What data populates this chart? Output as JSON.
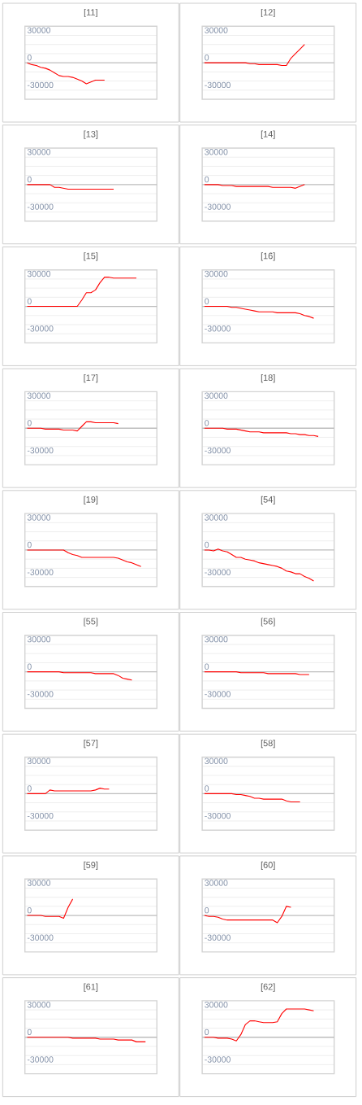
{
  "chart_data": [
    {
      "type": "line",
      "title": "[11]",
      "categories": [
        null,
        null,
        null,
        null,
        null,
        null,
        null,
        null,
        null,
        null,
        null,
        null,
        null,
        null,
        null,
        null,
        null,
        null,
        null,
        null,
        null,
        null,
        null,
        null,
        null,
        null,
        null,
        null,
        null
      ],
      "values": [
        0,
        -2000,
        -3000,
        -5000,
        -6000,
        -8000,
        -11000,
        -14000,
        -15000,
        -15000,
        -16000,
        -18000,
        -20000,
        -23000,
        -21000,
        -19000,
        -19000,
        -19000,
        null,
        null,
        null,
        null,
        null,
        null,
        null,
        null,
        null,
        null,
        null
      ],
      "color": "#ff0000",
      "ylim": [
        -40000,
        40000
      ],
      "yticks": [
        -30000,
        {
          "value": -20000,
          "label": null
        },
        {
          "value": -10000,
          "label": null
        },
        0,
        {
          "value": 10000,
          "label": null
        },
        {
          "value": 20000,
          "label": null
        },
        30000
      ],
      "grid": "y"
    },
    {
      "type": "line",
      "title": "[12]",
      "categories": [
        null,
        null,
        null,
        null,
        null,
        null,
        null,
        null,
        null,
        null,
        null,
        null,
        null,
        null,
        null,
        null,
        null,
        null,
        null,
        null,
        null,
        null,
        null,
        null,
        null,
        null,
        null,
        null,
        null
      ],
      "values": [
        0,
        0,
        0,
        0,
        0,
        0,
        0,
        0,
        0,
        0,
        -1000,
        -1000,
        -2000,
        -2000,
        -2000,
        -2000,
        -2000,
        -3000,
        -3000,
        5000,
        10000,
        15000,
        20000,
        null,
        null,
        null,
        null,
        null,
        null
      ],
      "color": "#ff0000",
      "ylim": [
        -40000,
        40000
      ],
      "yticks": [
        -30000,
        {
          "value": -20000,
          "label": null
        },
        {
          "value": -10000,
          "label": null
        },
        0,
        {
          "value": 10000,
          "label": null
        },
        {
          "value": 20000,
          "label": null
        },
        30000
      ],
      "grid": "y"
    },
    {
      "type": "line",
      "title": "[13]",
      "categories": [
        null,
        null,
        null,
        null,
        null,
        null,
        null,
        null,
        null,
        null,
        null,
        null,
        null,
        null,
        null,
        null,
        null,
        null,
        null,
        null,
        null,
        null,
        null,
        null,
        null,
        null,
        null,
        null,
        null
      ],
      "values": [
        0,
        0,
        0,
        0,
        0,
        0,
        -3000,
        -3000,
        -4000,
        -5000,
        -5000,
        -5000,
        -5000,
        -5000,
        -5000,
        -5000,
        -5000,
        -5000,
        -5000,
        -5000,
        null,
        null,
        null,
        null,
        null,
        null,
        null,
        null,
        null
      ],
      "color": "#ff0000",
      "ylim": [
        -40000,
        40000
      ],
      "yticks": [
        -30000,
        {
          "value": -20000,
          "label": null
        },
        {
          "value": -10000,
          "label": null
        },
        0,
        {
          "value": 10000,
          "label": null
        },
        {
          "value": 20000,
          "label": null
        },
        30000
      ],
      "grid": "y"
    },
    {
      "type": "line",
      "title": "[14]",
      "categories": [
        null,
        null,
        null,
        null,
        null,
        null,
        null,
        null,
        null,
        null,
        null,
        null,
        null,
        null,
        null,
        null,
        null,
        null,
        null,
        null,
        null,
        null,
        null,
        null,
        null,
        null,
        null,
        null,
        null
      ],
      "values": [
        0,
        0,
        0,
        0,
        -1000,
        -1000,
        -1000,
        -2000,
        -2000,
        -2000,
        -2000,
        -2000,
        -2000,
        -2000,
        -2000,
        -3000,
        -3000,
        -3000,
        -3000,
        -3000,
        -4000,
        -2000,
        0,
        null,
        null,
        null,
        null,
        null,
        null
      ],
      "color": "#ff0000",
      "ylim": [
        -40000,
        40000
      ],
      "yticks": [
        -30000,
        {
          "value": -20000,
          "label": null
        },
        {
          "value": -10000,
          "label": null
        },
        0,
        {
          "value": 10000,
          "label": null
        },
        {
          "value": 20000,
          "label": null
        },
        30000
      ],
      "grid": "y"
    },
    {
      "type": "line",
      "title": "[15]",
      "categories": [
        null,
        null,
        null,
        null,
        null,
        null,
        null,
        null,
        null,
        null,
        null,
        null,
        null,
        null,
        null,
        null,
        null,
        null,
        null,
        null,
        null,
        null,
        null,
        null,
        null,
        null,
        null,
        null,
        null
      ],
      "values": [
        0,
        0,
        0,
        0,
        0,
        0,
        0,
        0,
        0,
        0,
        0,
        0,
        7000,
        15000,
        15000,
        18000,
        26000,
        32000,
        32000,
        31000,
        31000,
        31000,
        31000,
        31000,
        31000,
        null,
        null,
        null,
        null
      ],
      "color": "#ff0000",
      "ylim": [
        -40000,
        40000
      ],
      "yticks": [
        -30000,
        {
          "value": -20000,
          "label": null
        },
        {
          "value": -10000,
          "label": null
        },
        0,
        {
          "value": 10000,
          "label": null
        },
        {
          "value": 20000,
          "label": null
        },
        30000
      ],
      "grid": "y"
    },
    {
      "type": "line",
      "title": "[16]",
      "categories": [
        null,
        null,
        null,
        null,
        null,
        null,
        null,
        null,
        null,
        null,
        null,
        null,
        null,
        null,
        null,
        null,
        null,
        null,
        null,
        null,
        null,
        null,
        null,
        null,
        null,
        null,
        null,
        null,
        null
      ],
      "values": [
        0,
        0,
        0,
        0,
        0,
        0,
        -1000,
        -1000,
        -2000,
        -3000,
        -4000,
        -5000,
        -6000,
        -6000,
        -6000,
        -6000,
        -7000,
        -7000,
        -7000,
        -7000,
        -7000,
        -8000,
        -10000,
        -11000,
        -13000,
        null,
        null,
        null,
        null
      ],
      "color": "#ff0000",
      "ylim": [
        -40000,
        40000
      ],
      "yticks": [
        -30000,
        {
          "value": -20000,
          "label": null
        },
        {
          "value": -10000,
          "label": null
        },
        0,
        {
          "value": 10000,
          "label": null
        },
        {
          "value": 20000,
          "label": null
        },
        30000
      ],
      "grid": "y"
    },
    {
      "type": "line",
      "title": "[17]",
      "categories": [
        null,
        null,
        null,
        null,
        null,
        null,
        null,
        null,
        null,
        null,
        null,
        null,
        null,
        null,
        null,
        null,
        null,
        null,
        null,
        null,
        null,
        null,
        null,
        null,
        null,
        null,
        null,
        null,
        null
      ],
      "values": [
        0,
        0,
        0,
        0,
        -1000,
        -1000,
        -1000,
        -1000,
        -2000,
        -2000,
        -2000,
        -3000,
        2000,
        7000,
        7000,
        6000,
        6000,
        6000,
        6000,
        6000,
        5000,
        null,
        null,
        null,
        null,
        null,
        null,
        null,
        null
      ],
      "color": "#ff0000",
      "ylim": [
        -40000,
        40000
      ],
      "yticks": [
        -30000,
        {
          "value": -20000,
          "label": null
        },
        {
          "value": -10000,
          "label": null
        },
        0,
        {
          "value": 10000,
          "label": null
        },
        {
          "value": 20000,
          "label": null
        },
        30000
      ],
      "grid": "y"
    },
    {
      "type": "line",
      "title": "[18]",
      "categories": [
        null,
        null,
        null,
        null,
        null,
        null,
        null,
        null,
        null,
        null,
        null,
        null,
        null,
        null,
        null,
        null,
        null,
        null,
        null,
        null,
        null,
        null,
        null,
        null,
        null,
        null,
        null,
        null,
        null
      ],
      "values": [
        0,
        0,
        0,
        0,
        0,
        -1000,
        -1000,
        -1000,
        -2000,
        -3000,
        -4000,
        -4000,
        -4000,
        -5000,
        -5000,
        -5000,
        -5000,
        -5000,
        -5000,
        -6000,
        -6000,
        -7000,
        -7000,
        -8000,
        -8000,
        -9000,
        null,
        null,
        null
      ],
      "color": "#ff0000",
      "ylim": [
        -40000,
        40000
      ],
      "yticks": [
        -30000,
        {
          "value": -20000,
          "label": null
        },
        {
          "value": -10000,
          "label": null
        },
        0,
        {
          "value": 10000,
          "label": null
        },
        {
          "value": 20000,
          "label": null
        },
        30000
      ],
      "grid": "y"
    },
    {
      "type": "line",
      "title": "[19]",
      "categories": [
        null,
        null,
        null,
        null,
        null,
        null,
        null,
        null,
        null,
        null,
        null,
        null,
        null,
        null,
        null,
        null,
        null,
        null,
        null,
        null,
        null,
        null,
        null,
        null,
        null,
        null,
        null,
        null,
        null
      ],
      "values": [
        0,
        0,
        0,
        0,
        0,
        0,
        0,
        0,
        0,
        -3000,
        -5000,
        -6000,
        -8000,
        -8000,
        -8000,
        -8000,
        -8000,
        -8000,
        -8000,
        -8000,
        -9000,
        -11000,
        -13000,
        -14000,
        -16000,
        -18000,
        null,
        null,
        null
      ],
      "color": "#ff0000",
      "ylim": [
        -40000,
        40000
      ],
      "yticks": [
        -30000,
        {
          "value": -20000,
          "label": null
        },
        {
          "value": -10000,
          "label": null
        },
        0,
        {
          "value": 10000,
          "label": null
        },
        {
          "value": 20000,
          "label": null
        },
        30000
      ],
      "grid": "y"
    },
    {
      "type": "line",
      "title": "[54]",
      "categories": [
        null,
        null,
        null,
        null,
        null,
        null,
        null,
        null,
        null,
        null,
        null,
        null,
        null,
        null,
        null,
        null,
        null,
        null,
        null,
        null,
        null,
        null,
        null,
        null,
        null,
        null,
        null,
        null,
        null
      ],
      "values": [
        0,
        0,
        -1000,
        1000,
        -1000,
        -2000,
        -5000,
        -8000,
        -8000,
        -10000,
        -11000,
        -12000,
        -14000,
        -15000,
        -16000,
        -17000,
        -18000,
        -20000,
        -23000,
        -24000,
        -26000,
        -26000,
        -29000,
        -31000,
        -34000,
        null,
        null,
        null,
        null
      ],
      "color": "#ff0000",
      "ylim": [
        -40000,
        40000
      ],
      "yticks": [
        -30000,
        {
          "value": -20000,
          "label": null
        },
        {
          "value": -10000,
          "label": null
        },
        0,
        {
          "value": 10000,
          "label": null
        },
        {
          "value": 20000,
          "label": null
        },
        30000
      ],
      "grid": "y"
    },
    {
      "type": "line",
      "title": "[55]",
      "categories": [
        null,
        null,
        null,
        null,
        null,
        null,
        null,
        null,
        null,
        null,
        null,
        null,
        null,
        null,
        null,
        null,
        null,
        null,
        null,
        null,
        null,
        null,
        null,
        null,
        null,
        null,
        null,
        null,
        null
      ],
      "values": [
        0,
        0,
        0,
        0,
        0,
        0,
        0,
        0,
        -1000,
        -1000,
        -1000,
        -1000,
        -1000,
        -1000,
        -1000,
        -2000,
        -2000,
        -2000,
        -2000,
        -2000,
        -4000,
        -7000,
        -8000,
        -9000,
        null,
        null,
        null,
        null,
        null
      ],
      "color": "#ff0000",
      "ylim": [
        -40000,
        40000
      ],
      "yticks": [
        -30000,
        {
          "value": -20000,
          "label": null
        },
        {
          "value": -10000,
          "label": null
        },
        0,
        {
          "value": 10000,
          "label": null
        },
        {
          "value": 20000,
          "label": null
        },
        30000
      ],
      "grid": "y"
    },
    {
      "type": "line",
      "title": "[56]",
      "categories": [
        null,
        null,
        null,
        null,
        null,
        null,
        null,
        null,
        null,
        null,
        null,
        null,
        null,
        null,
        null,
        null,
        null,
        null,
        null,
        null,
        null,
        null,
        null,
        null,
        null,
        null,
        null,
        null,
        null
      ],
      "values": [
        0,
        0,
        0,
        0,
        0,
        0,
        0,
        0,
        -1000,
        -1000,
        -1000,
        -1000,
        -1000,
        -1000,
        -2000,
        -2000,
        -2000,
        -2000,
        -2000,
        -2000,
        -2000,
        -3000,
        -3000,
        -3000,
        null,
        null,
        null,
        null,
        null
      ],
      "color": "#ff0000",
      "ylim": [
        -40000,
        40000
      ],
      "yticks": [
        -30000,
        {
          "value": -20000,
          "label": null
        },
        {
          "value": -10000,
          "label": null
        },
        0,
        {
          "value": 10000,
          "label": null
        },
        {
          "value": 20000,
          "label": null
        },
        30000
      ],
      "grid": "y"
    },
    {
      "type": "line",
      "title": "[57]",
      "categories": [
        null,
        null,
        null,
        null,
        null,
        null,
        null,
        null,
        null,
        null,
        null,
        null,
        null,
        null,
        null,
        null,
        null,
        null,
        null,
        null,
        null,
        null,
        null,
        null,
        null,
        null,
        null,
        null,
        null
      ],
      "values": [
        0,
        0,
        0,
        0,
        0,
        4000,
        3000,
        3000,
        3000,
        3000,
        3000,
        3000,
        3000,
        3000,
        3000,
        4000,
        6000,
        5000,
        5000,
        null,
        null,
        null,
        null,
        null,
        null,
        null,
        null,
        null,
        null
      ],
      "color": "#ff0000",
      "ylim": [
        -40000,
        40000
      ],
      "yticks": [
        -30000,
        {
          "value": -20000,
          "label": null
        },
        {
          "value": -10000,
          "label": null
        },
        0,
        {
          "value": 10000,
          "label": null
        },
        {
          "value": 20000,
          "label": null
        },
        30000
      ],
      "grid": "y"
    },
    {
      "type": "line",
      "title": "[58]",
      "categories": [
        null,
        null,
        null,
        null,
        null,
        null,
        null,
        null,
        null,
        null,
        null,
        null,
        null,
        null,
        null,
        null,
        null,
        null,
        null,
        null,
        null,
        null,
        null,
        null,
        null,
        null,
        null,
        null,
        null
      ],
      "values": [
        0,
        0,
        0,
        0,
        0,
        0,
        0,
        -1000,
        -1000,
        -2000,
        -3000,
        -5000,
        -5000,
        -6000,
        -6000,
        -6000,
        -6000,
        -6000,
        -8000,
        -9000,
        -9000,
        -9000,
        null,
        null,
        null,
        null,
        null,
        null,
        null
      ],
      "color": "#ff0000",
      "ylim": [
        -40000,
        40000
      ],
      "yticks": [
        -30000,
        {
          "value": -20000,
          "label": null
        },
        {
          "value": -10000,
          "label": null
        },
        0,
        {
          "value": 10000,
          "label": null
        },
        {
          "value": 20000,
          "label": null
        },
        30000
      ],
      "grid": "y"
    },
    {
      "type": "line",
      "title": "[59]",
      "categories": [
        null,
        null,
        null,
        null,
        null,
        null,
        null,
        null,
        null,
        null,
        null,
        null,
        null,
        null,
        null,
        null,
        null,
        null,
        null,
        null,
        null,
        null,
        null,
        null,
        null,
        null,
        null,
        null,
        null
      ],
      "values": [
        0,
        0,
        0,
        0,
        -1000,
        -1000,
        -1000,
        -1000,
        -3000,
        9000,
        18000,
        null,
        null,
        null,
        null,
        null,
        null,
        null,
        null,
        null,
        null,
        null,
        null,
        null,
        null,
        null,
        null,
        null,
        null
      ],
      "color": "#ff0000",
      "ylim": [
        -40000,
        40000
      ],
      "yticks": [
        -30000,
        {
          "value": -20000,
          "label": null
        },
        {
          "value": -10000,
          "label": null
        },
        0,
        {
          "value": 10000,
          "label": null
        },
        {
          "value": 20000,
          "label": null
        },
        30000
      ],
      "grid": "y"
    },
    {
      "type": "line",
      "title": "[60]",
      "categories": [
        null,
        null,
        null,
        null,
        null,
        null,
        null,
        null,
        null,
        null,
        null,
        null,
        null,
        null,
        null,
        null,
        null,
        null,
        null,
        null,
        null,
        null,
        null,
        null,
        null,
        null,
        null,
        null,
        null
      ],
      "values": [
        0,
        -1000,
        -1000,
        -2000,
        -4000,
        -5000,
        -5000,
        -5000,
        -5000,
        -5000,
        -5000,
        -5000,
        -5000,
        -5000,
        -5000,
        -5000,
        -8000,
        -1000,
        10000,
        9000,
        null,
        null,
        null,
        null,
        null,
        null,
        null,
        null,
        null
      ],
      "color": "#ff0000",
      "ylim": [
        -40000,
        40000
      ],
      "yticks": [
        -30000,
        {
          "value": -20000,
          "label": null
        },
        {
          "value": -10000,
          "label": null
        },
        0,
        {
          "value": 10000,
          "label": null
        },
        {
          "value": 20000,
          "label": null
        },
        30000
      ],
      "grid": "y"
    },
    {
      "type": "line",
      "title": "[61]",
      "categories": [
        null,
        null,
        null,
        null,
        null,
        null,
        null,
        null,
        null,
        null,
        null,
        null,
        null,
        null,
        null,
        null,
        null,
        null,
        null,
        null,
        null,
        null,
        null,
        null,
        null,
        null,
        null,
        null,
        null
      ],
      "values": [
        0,
        0,
        0,
        0,
        0,
        0,
        0,
        0,
        0,
        0,
        -1000,
        -1000,
        -1000,
        -1000,
        -1000,
        -1000,
        -2000,
        -2000,
        -2000,
        -2000,
        -3000,
        -3000,
        -3000,
        -3000,
        -5000,
        -5000,
        -5000,
        null,
        null
      ],
      "color": "#ff0000",
      "ylim": [
        -40000,
        40000
      ],
      "yticks": [
        -30000,
        {
          "value": -20000,
          "label": null
        },
        {
          "value": -10000,
          "label": null
        },
        0,
        {
          "value": 10000,
          "label": null
        },
        {
          "value": 20000,
          "label": null
        },
        30000
      ],
      "grid": "y"
    },
    {
      "type": "line",
      "title": "[62]",
      "categories": [
        null,
        null,
        null,
        null,
        null,
        null,
        null,
        null,
        null,
        null,
        null,
        null,
        null,
        null,
        null,
        null,
        null,
        null,
        null,
        null,
        null,
        null,
        null,
        null,
        null,
        null,
        null,
        null,
        null
      ],
      "values": [
        0,
        0,
        0,
        -1000,
        -1000,
        -1000,
        -2000,
        -4000,
        3000,
        14000,
        18000,
        18000,
        17000,
        16000,
        16000,
        16000,
        17000,
        26000,
        31000,
        31000,
        31000,
        31000,
        31000,
        30000,
        29000,
        null,
        null,
        null,
        null
      ],
      "color": "#ff0000",
      "ylim": [
        -40000,
        40000
      ],
      "yticks": [
        -30000,
        {
          "value": -20000,
          "label": null
        },
        {
          "value": -10000,
          "label": null
        },
        0,
        {
          "value": 10000,
          "label": null
        },
        {
          "value": 20000,
          "label": null
        },
        30000
      ],
      "grid": "y"
    }
  ]
}
